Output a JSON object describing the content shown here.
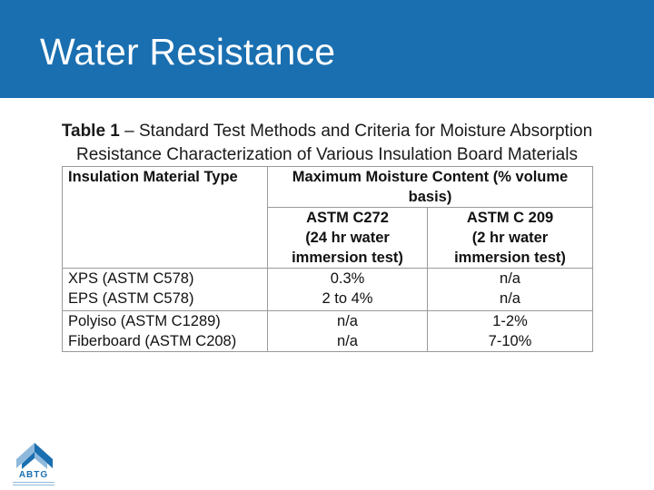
{
  "slide": {
    "title": "Water Resistance"
  },
  "caption": {
    "bold": "Table 1",
    "line1_rest": " – Standard Test Methods and Criteria for Moisture Absorption",
    "line2": "Resistance Characterization of Various Insulation Board Materials"
  },
  "table": {
    "col1_header": "Insulation Material Type",
    "col2_header_line1": "Maximum Moisture Content (% volume",
    "col2_header_line2": "basis)",
    "sub1": [
      "ASTM C272",
      "(24 hr water",
      "immersion test)"
    ],
    "sub2": [
      "ASTM C 209",
      "(2 hr water",
      "immersion test)"
    ],
    "rows": [
      {
        "material": "XPS (ASTM C578)",
        "c272": "0.3%",
        "c209": "n/a"
      },
      {
        "material": "EPS (ASTM C578)",
        "c272": "2 to 4%",
        "c209": "n/a"
      },
      {
        "material": "Polyiso (ASTM C1289)",
        "c272": "n/a",
        "c209": "1-2%"
      },
      {
        "material": "Fiberboard (ASTM C208)",
        "c272": "n/a",
        "c209": "7-10%"
      }
    ]
  },
  "logo": {
    "text": "ABTG",
    "icon": "abtg-logo-icon"
  },
  "colors": {
    "header": "#1a6fb0",
    "logo_light": "#8fb9dc",
    "logo_dark": "#1a6fb0"
  }
}
